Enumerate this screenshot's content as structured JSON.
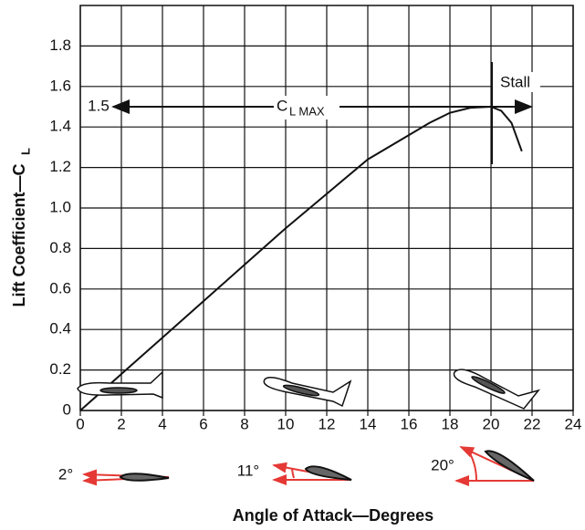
{
  "chart_data": {
    "type": "line",
    "x_label": "Angle of Attack—Degrees",
    "y_label": "Lift Coefficient—C",
    "y_label_sub": "L",
    "x": [
      0,
      2,
      4,
      6,
      8,
      10,
      12,
      14,
      16,
      17,
      18,
      19,
      20,
      20.5,
      21,
      21.5
    ],
    "series": [
      {
        "color": "#111111",
        "values": [
          0,
          0.18,
          0.36,
          0.54,
          0.72,
          0.9,
          1.07,
          1.24,
          1.36,
          1.42,
          1.47,
          1.495,
          1.5,
          1.48,
          1.42,
          1.28
        ]
      }
    ],
    "xlim": [
      0,
      24
    ],
    "xticks": [
      0,
      2,
      4,
      6,
      8,
      10,
      12,
      14,
      16,
      18,
      20,
      22,
      24
    ],
    "ylim": [
      0,
      2.0
    ],
    "yticks": [
      0,
      0.2,
      0.4,
      0.6,
      0.8,
      {
        "value": 1,
        "label": "1.0"
      },
      1.2,
      1.4,
      1.6,
      1.8
    ],
    "grid": true,
    "annotations": {
      "clmax_value": "1.5",
      "clmax": "C",
      "clmax_sub": "L MAX",
      "stall": "Stall",
      "aoa_small": "2°",
      "aoa_mid": "11°",
      "aoa_high": "20°"
    }
  }
}
